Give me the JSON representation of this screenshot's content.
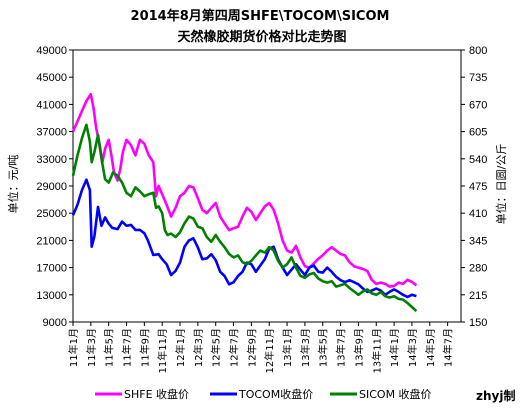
{
  "chart_data": {
    "type": "line",
    "title": "2014年8月第四周SHFE\\TOCOM\\SICOM",
    "subtitle": "天然橡胶期货价格对比走势图",
    "ylabel_left": "单位：元/吨",
    "ylabel_right": "单位：日圆/公斤",
    "ylim_left": [
      9000,
      49000
    ],
    "ylim_right": [
      150,
      800
    ],
    "yticks_left": [
      "49000",
      "45000",
      "41000",
      "37000",
      "33000",
      "29000",
      "25000",
      "21000",
      "17000",
      "13000",
      "9000"
    ],
    "yticks_right": [
      "800",
      "735",
      "670",
      "605",
      "540",
      "475",
      "410",
      "345",
      "280",
      "215",
      "150"
    ],
    "xticks": [
      "11年1月",
      "11年3月",
      "11年5月",
      "11年7月",
      "11年9月",
      "11年11月",
      "12年1月",
      "12年3月",
      "12年5月",
      "12年7月",
      "12年9月",
      "12年11月",
      "13年1月",
      "13年3月",
      "13年5月",
      "13年7月",
      "13年9月",
      "13年11月",
      "14年1月",
      "14年3月",
      "14年5月",
      "14年7月"
    ],
    "grid": false,
    "legend_position": "bottom",
    "x_unit": "months since 2011-01",
    "series": [
      {
        "name": "SHFE 收盘价",
        "axis": "left",
        "color": "#ff00ff",
        "points": [
          [
            0,
            37000
          ],
          [
            0.5,
            38500
          ],
          [
            1,
            40000
          ],
          [
            1.5,
            41500
          ],
          [
            2,
            42500
          ],
          [
            2.3,
            40500
          ],
          [
            2.6,
            37500
          ],
          [
            3,
            35000
          ],
          [
            3.3,
            32500
          ],
          [
            3.6,
            34500
          ],
          [
            4,
            35800
          ],
          [
            4.3,
            33500
          ],
          [
            4.6,
            31000
          ],
          [
            5,
            29800
          ],
          [
            5.3,
            31500
          ],
          [
            5.6,
            34000
          ],
          [
            6,
            35800
          ],
          [
            6.5,
            35000
          ],
          [
            7,
            33500
          ],
          [
            7.5,
            35800
          ],
          [
            8,
            35200
          ],
          [
            8.5,
            33500
          ],
          [
            9,
            32500
          ],
          [
            9.3,
            27500
          ],
          [
            9.6,
            29000
          ],
          [
            10,
            27800
          ],
          [
            10.5,
            26200
          ],
          [
            11,
            24500
          ],
          [
            11.5,
            25800
          ],
          [
            12,
            27500
          ],
          [
            12.5,
            28000
          ],
          [
            13,
            29000
          ],
          [
            13.5,
            28800
          ],
          [
            14,
            27200
          ],
          [
            14.5,
            25500
          ],
          [
            15,
            25000
          ],
          [
            15.5,
            25800
          ],
          [
            16,
            26500
          ],
          [
            16.5,
            24500
          ],
          [
            17,
            23500
          ],
          [
            17.5,
            22500
          ],
          [
            18,
            22800
          ],
          [
            18.5,
            23000
          ],
          [
            19,
            24500
          ],
          [
            19.5,
            25800
          ],
          [
            20,
            25200
          ],
          [
            20.5,
            24000
          ],
          [
            21,
            25000
          ],
          [
            21.5,
            26000
          ],
          [
            22,
            26500
          ],
          [
            22.5,
            25500
          ],
          [
            23,
            23500
          ],
          [
            23.5,
            21000
          ],
          [
            24,
            19500
          ],
          [
            24.5,
            19200
          ],
          [
            25,
            20200
          ],
          [
            25.5,
            18500
          ],
          [
            26,
            17200
          ],
          [
            26.5,
            17000
          ],
          [
            27,
            17600
          ],
          [
            27.5,
            18300
          ],
          [
            28,
            18800
          ],
          [
            28.5,
            19500
          ],
          [
            29,
            20000
          ],
          [
            29.5,
            19500
          ],
          [
            30,
            19000
          ],
          [
            30.5,
            18800
          ],
          [
            31,
            17800
          ],
          [
            31.5,
            17200
          ],
          [
            32,
            17000
          ],
          [
            32.5,
            16800
          ],
          [
            33,
            16500
          ],
          [
            33.5,
            15200
          ],
          [
            34,
            14600
          ],
          [
            34.5,
            14800
          ],
          [
            35,
            14600
          ],
          [
            35.5,
            14200
          ],
          [
            36,
            14300
          ],
          [
            36.5,
            14800
          ],
          [
            37,
            14600
          ],
          [
            37.5,
            15200
          ],
          [
            38,
            14900
          ],
          [
            38.5,
            14400
          ]
        ]
      },
      {
        "name": "TOCOM收盘价",
        "axis": "right",
        "color": "#0000ff",
        "points": [
          [
            0,
            405
          ],
          [
            0.5,
            430
          ],
          [
            1,
            465
          ],
          [
            1.5,
            490
          ],
          [
            1.9,
            465
          ],
          [
            2.1,
            330
          ],
          [
            2.4,
            355
          ],
          [
            2.8,
            425
          ],
          [
            3.2,
            380
          ],
          [
            3.6,
            400
          ],
          [
            4,
            385
          ],
          [
            4.4,
            375
          ],
          [
            5,
            372
          ],
          [
            5.5,
            390
          ],
          [
            6,
            380
          ],
          [
            6.5,
            382
          ],
          [
            7,
            370
          ],
          [
            7.5,
            370
          ],
          [
            8,
            362
          ],
          [
            8.4,
            345
          ],
          [
            9,
            310
          ],
          [
            9.6,
            312
          ],
          [
            10,
            300
          ],
          [
            10.5,
            288
          ],
          [
            11,
            262
          ],
          [
            11.5,
            272
          ],
          [
            12,
            292
          ],
          [
            12.5,
            330
          ],
          [
            13,
            345
          ],
          [
            13.5,
            350
          ],
          [
            14,
            328
          ],
          [
            14.5,
            300
          ],
          [
            15,
            302
          ],
          [
            15.5,
            312
          ],
          [
            16,
            298
          ],
          [
            16.5,
            270
          ],
          [
            17,
            260
          ],
          [
            17.5,
            240
          ],
          [
            18,
            245
          ],
          [
            18.5,
            260
          ],
          [
            19,
            270
          ],
          [
            19.5,
            292
          ],
          [
            20,
            288
          ],
          [
            20.5,
            270
          ],
          [
            21,
            285
          ],
          [
            21.5,
            300
          ],
          [
            22,
            325
          ],
          [
            22.5,
            330
          ],
          [
            23,
            300
          ],
          [
            23.5,
            280
          ],
          [
            24,
            262
          ],
          [
            24.5,
            275
          ],
          [
            25,
            288
          ],
          [
            25.5,
            275
          ],
          [
            26,
            262
          ],
          [
            26.5,
            280
          ],
          [
            27,
            285
          ],
          [
            27.5,
            270
          ],
          [
            28,
            268
          ],
          [
            28.5,
            280
          ],
          [
            29,
            270
          ],
          [
            29.5,
            258
          ],
          [
            30,
            250
          ],
          [
            30.5,
            245
          ],
          [
            31,
            250
          ],
          [
            31.5,
            245
          ],
          [
            32,
            240
          ],
          [
            32.5,
            230
          ],
          [
            33,
            222
          ],
          [
            33.5,
            225
          ],
          [
            34,
            230
          ],
          [
            34.5,
            225
          ],
          [
            35,
            215
          ],
          [
            35.5,
            222
          ],
          [
            36,
            228
          ],
          [
            36.5,
            222
          ],
          [
            37,
            215
          ],
          [
            37.5,
            210
          ],
          [
            38,
            215
          ],
          [
            38.5,
            212
          ]
        ]
      },
      {
        "name": "SICOM 收盘价",
        "axis": "left",
        "color": "#008000",
        "points": [
          [
            0,
            30500
          ],
          [
            0.5,
            33500
          ],
          [
            1,
            36000
          ],
          [
            1.5,
            38000
          ],
          [
            1.9,
            35500
          ],
          [
            2.1,
            32500
          ],
          [
            2.4,
            34000
          ],
          [
            2.8,
            36500
          ],
          [
            3.2,
            33000
          ],
          [
            3.6,
            30000
          ],
          [
            4,
            29500
          ],
          [
            4.5,
            31000
          ],
          [
            5,
            30500
          ],
          [
            5.5,
            29500
          ],
          [
            6,
            28000
          ],
          [
            6.5,
            27500
          ],
          [
            7,
            28800
          ],
          [
            7.5,
            28200
          ],
          [
            8,
            27500
          ],
          [
            8.5,
            27800
          ],
          [
            9,
            28000
          ],
          [
            9.3,
            25800
          ],
          [
            9.6,
            26000
          ],
          [
            10,
            25000
          ],
          [
            10.3,
            22500
          ],
          [
            10.6,
            21800
          ],
          [
            11,
            22000
          ],
          [
            11.5,
            21500
          ],
          [
            12,
            22200
          ],
          [
            12.5,
            23500
          ],
          [
            13,
            24500
          ],
          [
            13.5,
            24200
          ],
          [
            14,
            23000
          ],
          [
            14.5,
            22800
          ],
          [
            15,
            21500
          ],
          [
            15.5,
            20800
          ],
          [
            16,
            21800
          ],
          [
            16.5,
            20800
          ],
          [
            17,
            20000
          ],
          [
            17.5,
            19000
          ],
          [
            18,
            18500
          ],
          [
            18.5,
            18800
          ],
          [
            19,
            17800
          ],
          [
            19.5,
            17500
          ],
          [
            20,
            18000
          ],
          [
            20.5,
            18800
          ],
          [
            21,
            19500
          ],
          [
            21.5,
            19200
          ],
          [
            22,
            20000
          ],
          [
            22.5,
            19500
          ],
          [
            23,
            18000
          ],
          [
            23.5,
            17000
          ],
          [
            24,
            17500
          ],
          [
            24.5,
            18500
          ],
          [
            25,
            17000
          ],
          [
            25.5,
            15800
          ],
          [
            26,
            15500
          ],
          [
            26.5,
            16000
          ],
          [
            27,
            16200
          ],
          [
            27.5,
            15400
          ],
          [
            28,
            15000
          ],
          [
            28.5,
            14800
          ],
          [
            29,
            15000
          ],
          [
            29.5,
            14200
          ],
          [
            30,
            14400
          ],
          [
            30.5,
            14600
          ],
          [
            31,
            14000
          ],
          [
            31.5,
            13500
          ],
          [
            32,
            13000
          ],
          [
            32.5,
            13500
          ],
          [
            33,
            13800
          ],
          [
            33.5,
            13200
          ],
          [
            34,
            13000
          ],
          [
            34.5,
            13400
          ],
          [
            35,
            12800
          ],
          [
            35.5,
            12600
          ],
          [
            36,
            12800
          ],
          [
            36.5,
            12400
          ],
          [
            37,
            12300
          ],
          [
            37.5,
            11800
          ],
          [
            38,
            11200
          ],
          [
            38.5,
            10600
          ]
        ]
      }
    ]
  },
  "credit": "zhyj制"
}
